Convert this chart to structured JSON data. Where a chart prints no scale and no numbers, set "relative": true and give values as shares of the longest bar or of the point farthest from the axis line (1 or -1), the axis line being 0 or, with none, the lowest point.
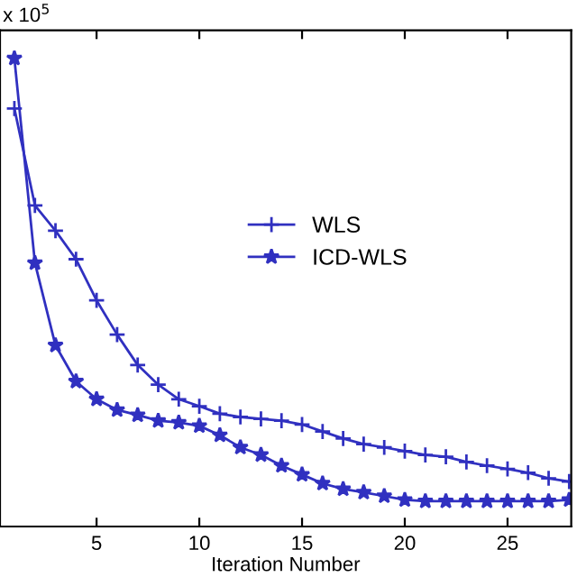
{
  "chart_data": {
    "type": "line",
    "relative": true,
    "xlabel": "Iteration Number",
    "annotations": [
      "x 10$^{5}$"
    ],
    "x": [
      1,
      2,
      3,
      4,
      5,
      6,
      7,
      8,
      9,
      10,
      11,
      12,
      13,
      14,
      15,
      16,
      17,
      18,
      19,
      20,
      21,
      22,
      23,
      24,
      25,
      26,
      27,
      28
    ],
    "xlim": [
      0.3,
      28.1
    ],
    "xticks": [
      5,
      10,
      15,
      20,
      25
    ],
    "legend": "right",
    "grid": false,
    "series": [
      {
        "name": "WLS",
        "color": "#3030c0",
        "marker": "plus",
        "values": [
          0.893,
          0.686,
          0.632,
          0.571,
          0.483,
          0.41,
          0.345,
          0.303,
          0.272,
          0.257,
          0.241,
          0.234,
          0.23,
          0.226,
          0.218,
          0.203,
          0.188,
          0.176,
          0.169,
          0.161,
          0.153,
          0.149,
          0.138,
          0.13,
          0.123,
          0.115,
          0.103,
          0.096
        ]
      },
      {
        "name": "ICD-WLS",
        "color": "#3030c0",
        "marker": "star",
        "values": [
          1.0,
          0.563,
          0.387,
          0.31,
          0.272,
          0.249,
          0.238,
          0.226,
          0.222,
          0.215,
          0.195,
          0.169,
          0.153,
          0.13,
          0.111,
          0.092,
          0.08,
          0.073,
          0.065,
          0.057,
          0.054,
          0.054,
          0.054,
          0.054,
          0.054,
          0.054,
          0.054,
          0.057
        ]
      }
    ]
  }
}
